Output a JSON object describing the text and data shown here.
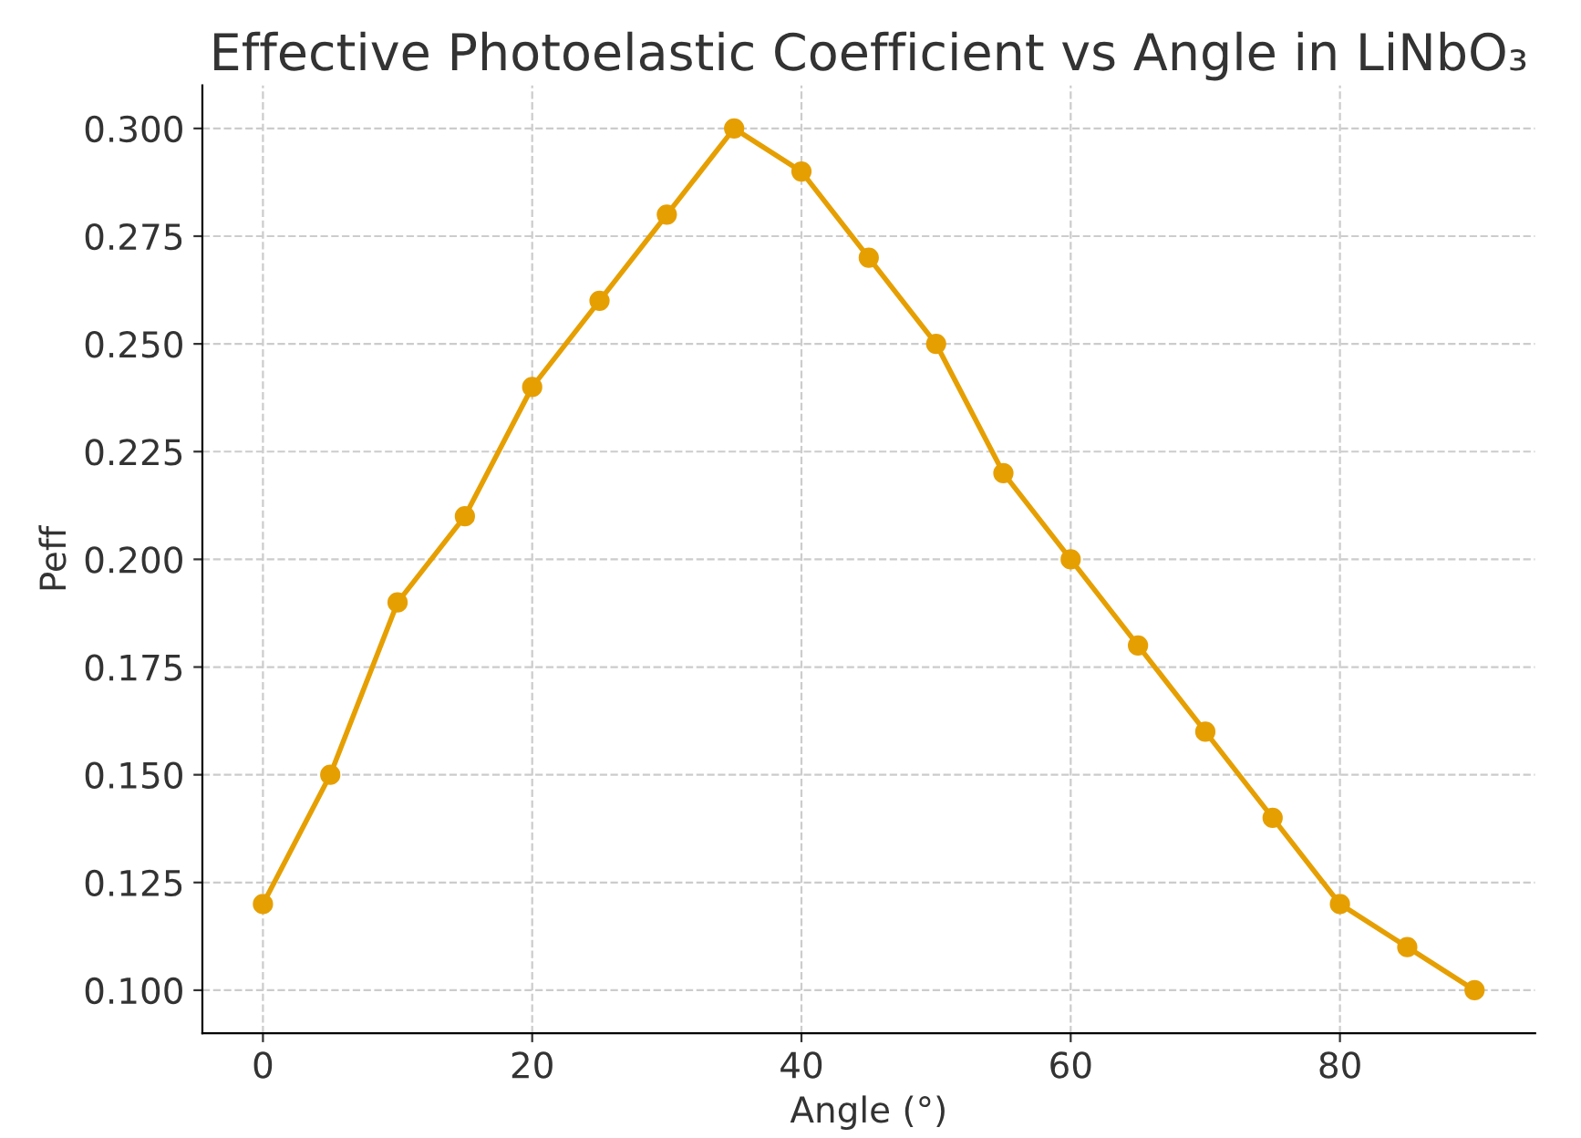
{
  "chart_data": {
    "type": "line",
    "title": "Effective Photoelastic Coefficient vs Angle in LiNbO₃",
    "xlabel": "Angle (°)",
    "ylabel": "Peff",
    "x": [
      0,
      5,
      10,
      15,
      20,
      25,
      30,
      35,
      40,
      45,
      50,
      55,
      60,
      65,
      70,
      75,
      80,
      85,
      90
    ],
    "series": [
      {
        "color": "#e69f00",
        "values": [
          0.12,
          0.15,
          0.19,
          0.21,
          0.24,
          0.26,
          0.28,
          0.3,
          0.29,
          0.27,
          0.25,
          0.22,
          0.2,
          0.18,
          0.16,
          0.14,
          0.12,
          0.11,
          0.1
        ]
      }
    ],
    "xlim": [
      -4.5,
      94.5
    ],
    "ylim": [
      0.09,
      0.31
    ],
    "xticks": [
      0,
      20,
      40,
      60,
      80
    ],
    "yticks": [
      {
        "value": 0.1,
        "label": "0.100"
      },
      {
        "value": 0.125,
        "label": "0.125"
      },
      {
        "value": 0.15,
        "label": "0.150"
      },
      {
        "value": 0.175,
        "label": "0.175"
      },
      {
        "value": 0.2,
        "label": "0.200"
      },
      {
        "value": 0.225,
        "label": "0.225"
      },
      {
        "value": 0.25,
        "label": "0.250"
      },
      {
        "value": 0.275,
        "label": "0.275"
      },
      {
        "value": 0.3,
        "label": "0.300"
      }
    ],
    "grid": true,
    "marker": "circle",
    "line_style": "solid"
  }
}
